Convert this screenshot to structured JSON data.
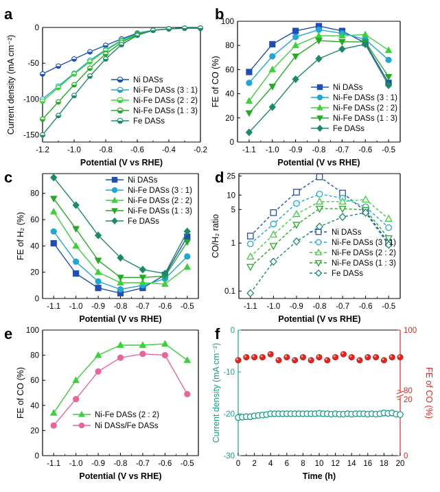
{
  "chart_data": [
    {
      "panel": "a",
      "type": "line",
      "style": "lsv",
      "xlabel": "Potential (V vs RHE)",
      "ylabel": "Current density (mA cm⁻²)",
      "xlim": [
        -1.2,
        -0.2
      ],
      "ylim": [
        -160,
        0
      ],
      "xticks": [
        "-1.2",
        "-1.0",
        "-0.8",
        "-0.6",
        "-0.4",
        "-0.2"
      ],
      "yticks": [
        "-150",
        "-100",
        "-50",
        "0"
      ],
      "xtick_values": [
        -1.2,
        -1.0,
        -0.8,
        -0.6,
        -0.4,
        -0.2
      ],
      "ytick_values": [
        -150,
        -100,
        -50,
        0
      ],
      "legend_position": "center-right",
      "x": [
        -1.2,
        -1.1,
        -1.0,
        -0.9,
        -0.8,
        -0.7,
        -0.6,
        -0.5,
        -0.4,
        -0.3,
        -0.2
      ],
      "series": [
        {
          "name": "Ni DASs",
          "color": "#1f4fb5",
          "marker": "circle-half",
          "y": [
            -65,
            -54,
            -44,
            -34,
            -25,
            -16,
            -8,
            -4,
            -2,
            -1,
            -1
          ]
        },
        {
          "name": "Ni-Fe DASs (3 : 1)",
          "color": "#1fa7d6",
          "marker": "circle-half",
          "y": [
            -100,
            -82,
            -64,
            -46,
            -31,
            -18,
            -9,
            -4,
            -2,
            -1,
            -1
          ]
        },
        {
          "name": "Ni-Fe DASs (2 : 2)",
          "color": "#3ad13a",
          "marker": "circle-half",
          "y": [
            -103,
            -84,
            -65,
            -48,
            -32,
            -19,
            -9,
            -4,
            -2,
            -1,
            -1
          ]
        },
        {
          "name": "Ni-Fe DASs (1 : 3)",
          "color": "#22aa22",
          "marker": "circle-half",
          "y": [
            -128,
            -104,
            -80,
            -57,
            -37,
            -21,
            -10,
            -4,
            -2,
            -1,
            -1
          ]
        },
        {
          "name": "Fe DASs",
          "color": "#1a8a6a",
          "marker": "circle-half",
          "y": [
            -150,
            -123,
            -95,
            -68,
            -44,
            -24,
            -11,
            -4,
            -2,
            -1,
            -1
          ]
        }
      ]
    },
    {
      "panel": "b",
      "type": "line",
      "xlabel": "Potential (V vs RHE)",
      "ylabel": "FE of CO (%)",
      "xlim": [
        -1.15,
        -0.45
      ],
      "ylim": [
        0,
        100
      ],
      "xticks": [
        "-1.1",
        "-1.0",
        "-0.9",
        "-0.8",
        "-0.7",
        "-0.6",
        "-0.5"
      ],
      "yticks": [
        "0",
        "20",
        "40",
        "60",
        "80",
        "100"
      ],
      "xtick_values": [
        -1.1,
        -1.0,
        -0.9,
        -0.8,
        -0.7,
        -0.6,
        -0.5
      ],
      "ytick_values": [
        0,
        20,
        40,
        60,
        80,
        100
      ],
      "legend_position": "bottom-center",
      "x": [
        -1.1,
        -1.0,
        -0.9,
        -0.8,
        -0.7,
        -0.6,
        -0.5
      ],
      "series": [
        {
          "name": "Ni DASs",
          "color": "#1f4fb5",
          "marker": "square",
          "y": [
            58,
            81,
            92,
            96,
            92,
            82,
            49
          ]
        },
        {
          "name": "Ni-Fe DASs (3 : 1)",
          "color": "#1fa7d6",
          "marker": "circle",
          "y": [
            49,
            71,
            87,
            93,
            90,
            85,
            68
          ]
        },
        {
          "name": "Ni-Fe DASs (2 : 2)",
          "color": "#3ad13a",
          "marker": "triangle-up",
          "y": [
            34,
            60,
            80,
            88,
            88,
            89,
            76
          ]
        },
        {
          "name": "Ni-Fe DASs (1 : 3)",
          "color": "#22aa22",
          "marker": "triangle-down",
          "y": [
            24,
            46,
            71,
            84,
            83,
            83,
            54
          ]
        },
        {
          "name": "Fe DASs",
          "color": "#1a8a6a",
          "marker": "diamond",
          "y": [
            8,
            29,
            52,
            69,
            77,
            81,
            47
          ]
        }
      ]
    },
    {
      "panel": "c",
      "type": "line",
      "xlabel": "Potential (V vs RHE)",
      "ylabel": "FE of H₂ (%)",
      "xlim": [
        -1.15,
        -0.45
      ],
      "ylim": [
        0,
        95
      ],
      "xticks": [
        "-1.1",
        "-1.0",
        "-0.9",
        "-0.8",
        "-0.7",
        "-0.6",
        "-0.5"
      ],
      "yticks": [
        "0",
        "20",
        "40",
        "60",
        "80"
      ],
      "xtick_values": [
        -1.1,
        -1.0,
        -0.9,
        -0.8,
        -0.7,
        -0.6,
        -0.5
      ],
      "ytick_values": [
        0,
        20,
        40,
        60,
        80
      ],
      "legend_position": "top-right",
      "x": [
        -1.1,
        -1.0,
        -0.9,
        -0.8,
        -0.7,
        -0.6,
        -0.5
      ],
      "series": [
        {
          "name": "Ni DASs",
          "color": "#1f4fb5",
          "marker": "square",
          "y": [
            42,
            19,
            8,
            4,
            8,
            18,
            47
          ]
        },
        {
          "name": "Ni-Fe DASs (3 : 1)",
          "color": "#1fa7d6",
          "marker": "circle",
          "y": [
            51,
            28,
            13,
            7,
            10,
            15,
            32
          ]
        },
        {
          "name": "Ni-Fe DASs (2 : 2)",
          "color": "#3ad13a",
          "marker": "triangle-up",
          "y": [
            66,
            40,
            20,
            12,
            12,
            11,
            24
          ]
        },
        {
          "name": "Ni-Fe DASs (1 : 3)",
          "color": "#22aa22",
          "marker": "triangle-down",
          "y": [
            76,
            53,
            29,
            16,
            16,
            17,
            43
          ]
        },
        {
          "name": "Fe DASs",
          "color": "#1a8a6a",
          "marker": "diamond",
          "y": [
            92,
            71,
            48,
            31,
            22,
            19,
            51
          ]
        }
      ]
    },
    {
      "panel": "d",
      "type": "line",
      "style": "dashed-open",
      "xlabel": "Potential (V vs RHE)",
      "ylabel": "CO/H₂ ratio",
      "xlim": [
        -1.15,
        -0.45
      ],
      "ylim": [
        0.07,
        28
      ],
      "yscale": "log",
      "xticks": [
        "-1.1",
        "-1.0",
        "-0.9",
        "-0.8",
        "-0.7",
        "-0.6",
        "-0.5"
      ],
      "yticks": [
        "0.1",
        "1",
        "5",
        "10",
        "25"
      ],
      "xtick_values": [
        -1.1,
        -1.0,
        -0.9,
        -0.8,
        -0.7,
        -0.6,
        -0.5
      ],
      "ytick_values": [
        0.1,
        1,
        5,
        10,
        25
      ],
      "legend_position": "bottom-center",
      "x": [
        -1.1,
        -1.0,
        -0.9,
        -0.8,
        -0.7,
        -0.6,
        -0.5
      ],
      "series": [
        {
          "name": "Ni DASs",
          "color": "#1f4fb5",
          "marker": "square-open",
          "y": [
            1.4,
            4.3,
            11.5,
            24,
            11,
            4.6,
            1.0
          ]
        },
        {
          "name": "Ni-Fe DASs (3 : 1)",
          "color": "#1fa7d6",
          "marker": "circle-open",
          "y": [
            0.96,
            2.5,
            6.7,
            10.5,
            8.6,
            5.7,
            2.1
          ]
        },
        {
          "name": "Ni-Fe DASs (2 : 2)",
          "color": "#3ad13a",
          "marker": "triangle-up-open",
          "y": [
            0.52,
            1.5,
            4.0,
            7.3,
            7.3,
            8.1,
            3.2
          ]
        },
        {
          "name": "Ni-Fe DASs (1 : 3)",
          "color": "#22aa22",
          "marker": "triangle-down-open",
          "y": [
            0.32,
            0.87,
            2.4,
            5.2,
            5.2,
            4.9,
            1.26
          ]
        },
        {
          "name": "Fe DASs",
          "color": "#1a8a6a",
          "marker": "diamond-open",
          "y": [
            0.09,
            0.41,
            1.08,
            2.2,
            3.5,
            4.3,
            0.92
          ]
        }
      ]
    },
    {
      "panel": "e",
      "type": "line",
      "xlabel": "Potential (V vs RHE)",
      "ylabel": "FE of CO (%)",
      "xlim": [
        -1.15,
        -0.45
      ],
      "ylim": [
        0,
        100
      ],
      "xticks": [
        "-1.1",
        "-1.0",
        "-0.9",
        "-0.8",
        "-0.7",
        "-0.6",
        "-0.5"
      ],
      "yticks": [
        "0",
        "20",
        "40",
        "60",
        "80",
        "100"
      ],
      "xtick_values": [
        -1.1,
        -1.0,
        -0.9,
        -0.8,
        -0.7,
        -0.6,
        -0.5
      ],
      "ytick_values": [
        0,
        20,
        40,
        60,
        80,
        100
      ],
      "legend_position": "bottom-center",
      "x": [
        -1.1,
        -1.0,
        -0.9,
        -0.8,
        -0.7,
        -0.6,
        -0.5
      ],
      "series": [
        {
          "name": "Ni-Fe DASs (2 : 2)",
          "color": "#3ad13a",
          "marker": "triangle-up",
          "y": [
            34,
            60,
            80,
            88,
            88,
            89,
            76
          ]
        },
        {
          "name": "Ni DASs/Fe DASs",
          "color": "#e9649b",
          "marker": "circle",
          "y": [
            24,
            45,
            67,
            78,
            81,
            80,
            49
          ]
        }
      ]
    },
    {
      "panel": "f",
      "type": "scatter",
      "dual_axis": true,
      "xlabel": "Time (h)",
      "ylabel": "Current density (mA cm⁻²)",
      "ylabel_right": "FE of CO (%)",
      "xlim": [
        0,
        20
      ],
      "ylim": [
        -30,
        0
      ],
      "xticks": [
        "0",
        "2",
        "4",
        "6",
        "8",
        "10",
        "12",
        "14",
        "16",
        "18",
        "20"
      ],
      "yticks": [
        "-30",
        "-20",
        "-10",
        "0"
      ],
      "yticks_right": [
        "0",
        "20",
        "80",
        "100"
      ],
      "xtick_values": [
        0,
        2,
        4,
        6,
        8,
        10,
        12,
        14,
        16,
        18,
        20
      ],
      "ytick_values": [
        -30,
        -20,
        -10,
        0
      ],
      "ytick_right_values": [
        0,
        20,
        80,
        100
      ],
      "left_axis_color": "#13a08a",
      "right_axis_color": "#e8231f",
      "series": [
        {
          "name": "Current density",
          "axis": "left",
          "color": "#13a08a",
          "marker": "circle-open",
          "x": [
            0,
            0.5,
            1,
            1.5,
            2,
            2.5,
            3,
            3.5,
            4,
            4.5,
            5,
            5.5,
            6,
            6.5,
            7,
            7.5,
            8,
            8.5,
            9,
            9.5,
            10,
            10.5,
            11,
            11.5,
            12,
            12.5,
            13,
            13.5,
            14,
            14.5,
            15,
            15.5,
            16,
            16.5,
            17,
            17.5,
            18,
            18.5,
            19,
            19.5,
            20
          ],
          "y": [
            -20.9,
            -20.8,
            -20.7,
            -20.7,
            -20.5,
            -20.4,
            -20.3,
            -20.2,
            -20.0,
            -20.0,
            -20.0,
            -20.0,
            -20.0,
            -20.0,
            -20.0,
            -20.0,
            -20.0,
            -20.0,
            -20.0,
            -20.0,
            -19.9,
            -20.0,
            -20.0,
            -20.1,
            -20.0,
            -20.1,
            -20.1,
            -20.0,
            -20.1,
            -20.0,
            -20.0,
            -20.0,
            -20.1,
            -20.0,
            -20.1,
            -20.0,
            -19.8,
            -19.9,
            -19.8,
            -20.1,
            -20.2
          ]
        },
        {
          "name": "FE of CO",
          "axis": "right",
          "color": "#e8231f",
          "marker": "sphere",
          "x": [
            0,
            1,
            2,
            3,
            4,
            5,
            6,
            7,
            8,
            9,
            10,
            11,
            12,
            13,
            14,
            15,
            16,
            17,
            18,
            19,
            20
          ],
          "y": [
            90,
            91,
            91,
            91,
            92,
            90,
            91,
            90,
            91,
            90,
            91,
            90,
            91,
            92,
            91,
            90,
            91,
            91,
            90,
            91,
            91
          ]
        }
      ]
    }
  ]
}
